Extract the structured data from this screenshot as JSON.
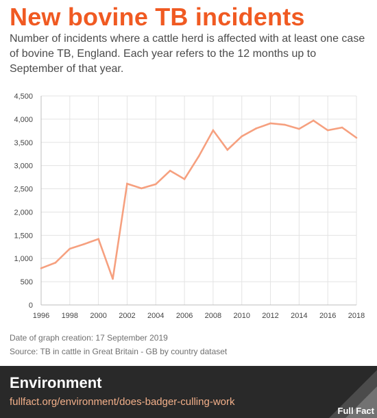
{
  "title": "New bovine TB incidents",
  "subtitle": "Number of incidents where a cattle herd is affected with at least one case of bovine TB, England.  Each year refers to the 12 months up to September of that year.",
  "footnote": {
    "created": "Date of graph creation: 17 September 2019",
    "source": "Source: TB in cattle in Great Britain - GB by country dataset"
  },
  "band": {
    "section": "Environment",
    "url": "fullfact.org/environment/does-badger-culling-work",
    "logo_text": "Full Fact",
    "logo_icon": "full-fact-logo-icon"
  },
  "colors": {
    "title": "#f05a22",
    "line": "#f6a07f",
    "band": "#292929",
    "url": "#f3b08a"
  },
  "chart_data": {
    "type": "line",
    "title": "",
    "xlabel": "",
    "ylabel": "",
    "xlim": [
      1996,
      2018
    ],
    "ylim": [
      0,
      4500
    ],
    "grid": true,
    "x": [
      1996,
      1997,
      1998,
      1999,
      2000,
      2001,
      2002,
      2003,
      2004,
      2005,
      2006,
      2007,
      2008,
      2009,
      2010,
      2011,
      2012,
      2013,
      2014,
      2015,
      2016,
      2017,
      2018
    ],
    "series": [
      {
        "values": [
          790,
          910,
          1210,
          1310,
          1420,
          560,
          2610,
          2510,
          2600,
          2890,
          2710,
          3200,
          3760,
          3340,
          3630,
          3800,
          3910,
          3880,
          3790,
          3970,
          3760,
          3820,
          3600
        ]
      }
    ],
    "x_ticks": [
      1996,
      1998,
      2000,
      2002,
      2004,
      2006,
      2008,
      2010,
      2012,
      2014,
      2016,
      2018
    ],
    "y_ticks": [
      0,
      500,
      1000,
      1500,
      2000,
      2500,
      3000,
      3500,
      4000,
      4500
    ],
    "y_tick_labels": [
      "0",
      "500",
      "1,000",
      "1,500",
      "2,000",
      "2,500",
      "3,000",
      "3,500",
      "4,000",
      "4,500"
    ]
  }
}
